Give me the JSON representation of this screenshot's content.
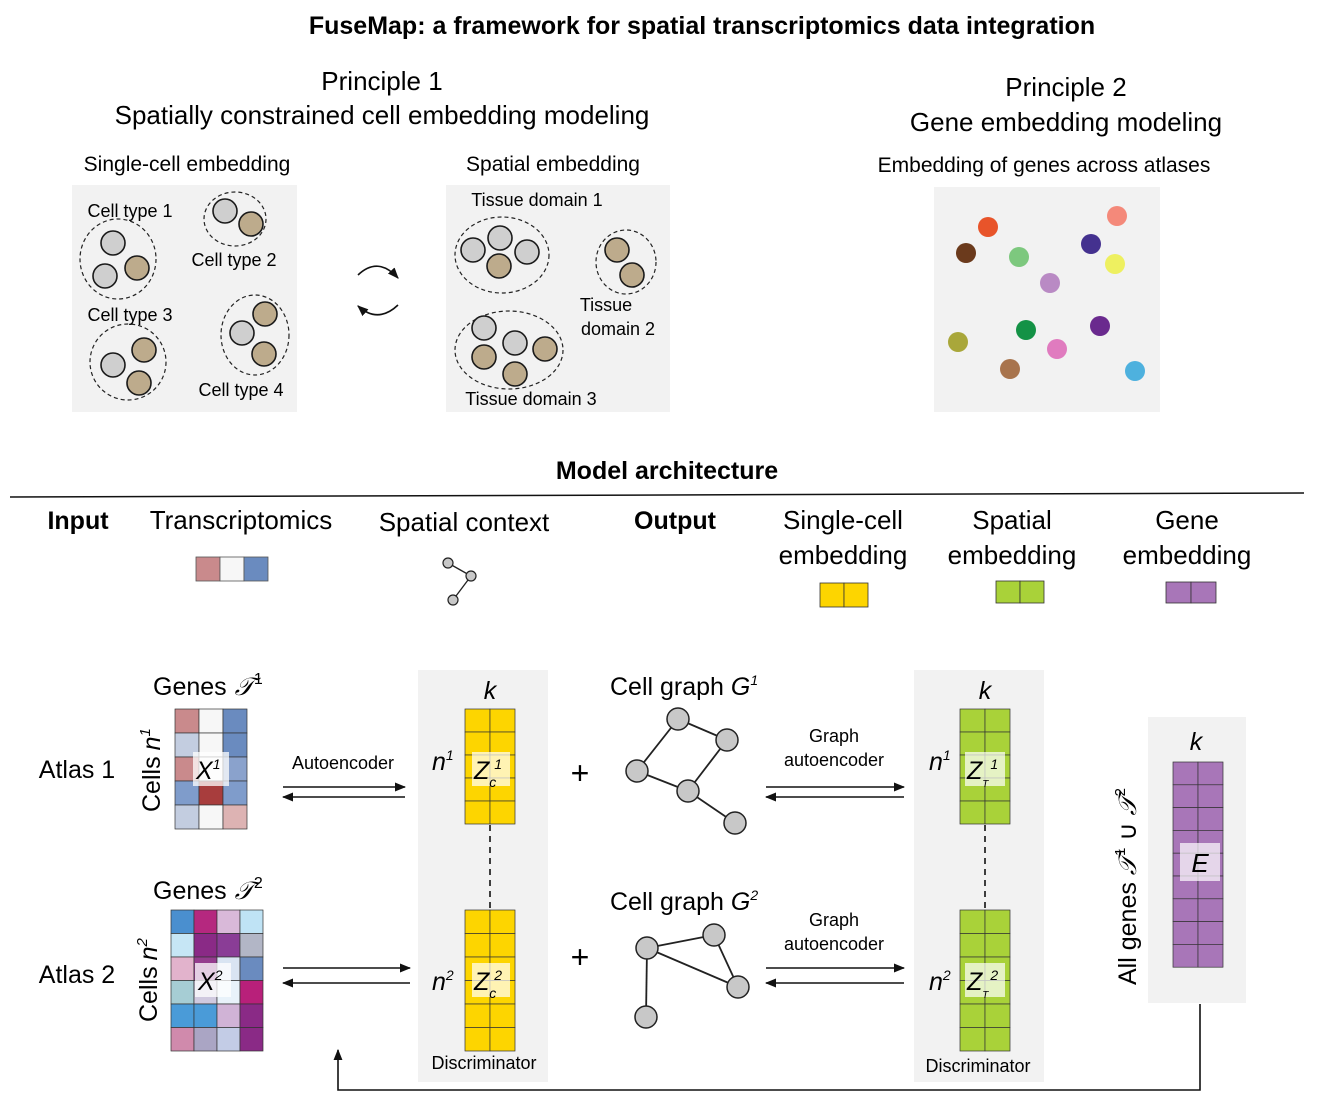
{
  "title": "FuseMap: a framework for spatial transcriptomics data integration",
  "principle1": {
    "heading": "Principle 1",
    "subheading": "Spatially constrained cell embedding modeling",
    "single_cell_panel": {
      "label": "Single-cell embedding",
      "cell_types": [
        "Cell type 1",
        "Cell type 2",
        "Cell type 3",
        "Cell type 4"
      ]
    },
    "spatial_panel": {
      "label": "Spatial embedding",
      "domain1": "Tissue domain 1",
      "domain2_line1": "Tissue",
      "domain2_line2": "domain 2",
      "domain3": "Tissue domain 3"
    }
  },
  "principle2": {
    "heading": "Principle 2",
    "subheading": "Gene embedding modeling",
    "panel_label": "Embedding of genes across atlases",
    "gene_dot_colors": [
      "#e8542a",
      "#f4897a",
      "#6b3a1c",
      "#7dc87e",
      "#44318f",
      "#eef060",
      "#b98ac4",
      "#a9a73a",
      "#149246",
      "#6a2a8e",
      "#e07bbf",
      "#a8744d",
      "#4eb1de"
    ]
  },
  "architecture": {
    "heading": "Model architecture",
    "input_label": "Input",
    "transcriptomics": "Transcriptomics",
    "spatial_context": "Spatial context",
    "output_label": "Output",
    "single_cell_line1": "Single-cell",
    "single_cell_line2": "embedding",
    "spatial_line1": "Spatial",
    "spatial_line2": "embedding",
    "gene_line1": "Gene",
    "gene_line2": "embedding"
  },
  "colors": {
    "single_cell": "#fdd500",
    "spatial": "#a9d239",
    "gene": "#a876b8",
    "panel_bg": "#f2f2f2",
    "cell_gray": "#cfcfcf",
    "cell_tan": "#bdab8c"
  },
  "atlas1": {
    "label": "Atlas 1",
    "genes": "Genes",
    "gene_set": "𝒯",
    "gene_set_sup": "1",
    "cells": "Cells",
    "cells_sym": "n",
    "cells_sup": "1",
    "matrix": "X",
    "matrix_sup": "1",
    "matrix_colors": [
      [
        "#c98a8c",
        "#f7f7f7",
        "#6a8bbf"
      ],
      [
        "#c3cde0",
        "#f7f7f7",
        "#6a8bbf"
      ],
      [
        "#c98a8c",
        "#f7f7f7",
        "#8aa2cc"
      ],
      [
        "#7f9ccb",
        "#a83d3d",
        "#7f9ccb"
      ],
      [
        "#c3cde0",
        "#f7f7f7",
        "#ddb3b3"
      ]
    ],
    "autoencoder": "Autoencoder",
    "embed_n": "n",
    "embed_n_sup": "1",
    "z_letter": "Z",
    "z_sub": "c",
    "z_sup": "1",
    "graph_label": "Cell graph ",
    "graph_sym": "G",
    "graph_sup": "1",
    "graph_ae_line1": "Graph",
    "graph_ae_line2": "autoencoder",
    "sp_n": "n",
    "sp_n_sup": "1",
    "zt_letter": "Z",
    "zt_sub": "T",
    "zt_sup": "1"
  },
  "atlas2": {
    "label": "Atlas 2",
    "genes": "Genes",
    "gene_set": "𝒯",
    "gene_set_sup": "2",
    "cells": "Cells",
    "cells_sym": "n",
    "cells_sup": "2",
    "matrix": "X",
    "matrix_sup": "2",
    "matrix_colors": [
      [
        "#4a8fcf",
        "#b5287f",
        "#d9b9d9",
        "#bfe3f5"
      ],
      [
        "#c6e6f5",
        "#8a2a86",
        "#8a3d96",
        "#b2b6c6"
      ],
      [
        "#e2b3cc",
        "#943c8e",
        "#d9e4f2",
        "#6a8bbf"
      ],
      [
        "#a6cdd4",
        "#cfc9df",
        "#e8f2fa",
        "#b8207a"
      ],
      [
        "#4a9bd8",
        "#4a9bd8",
        "#d0b3d6",
        "#8a2a86"
      ],
      [
        "#d08aac",
        "#aaa5c4",
        "#c3cce6",
        "#8a2a86"
      ]
    ],
    "embed_n": "n",
    "embed_n_sup": "2",
    "z_letter": "Z",
    "z_sub": "c",
    "z_sup": "2",
    "graph_label": "Cell graph ",
    "graph_sym": "G",
    "graph_sup": "2",
    "graph_ae_line1": "Graph",
    "graph_ae_line2": "autoencoder",
    "sp_n": "n",
    "sp_n_sup": "2",
    "zt_letter": "Z",
    "zt_sub": "T",
    "zt_sup": "2"
  },
  "k_label": "k",
  "plus": "+",
  "discriminator": "Discriminator",
  "all_genes": {
    "prefix": "All genes ",
    "sym1": "𝒯",
    "sup1": "1",
    "union": " ∪ ",
    "sym2": "𝒯",
    "sup2": "2",
    "matrix": "E"
  }
}
